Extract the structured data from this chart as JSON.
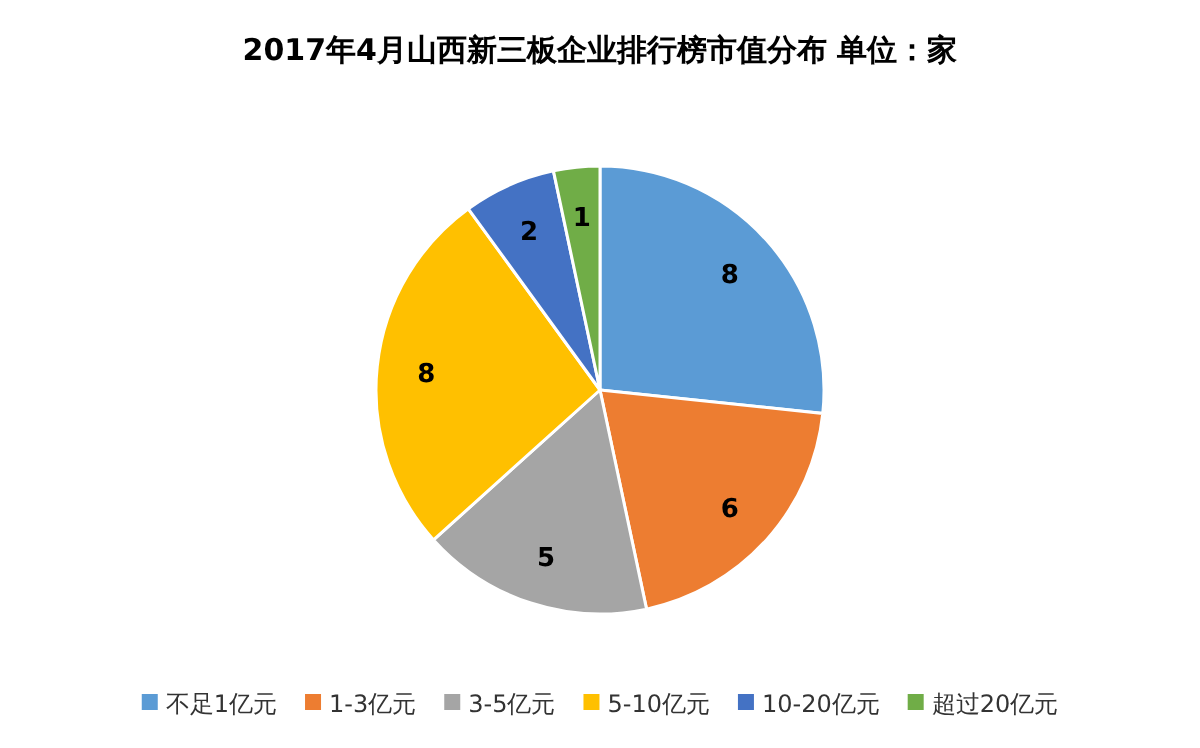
{
  "chart_data": {
    "type": "pie",
    "title": "2017年4月山西新三板企业排行榜市值分布  单位：家",
    "categories": [
      "不足1亿元",
      "1-3亿元",
      "3-5亿元",
      "5-10亿元",
      "10-20亿元",
      "超过20亿元"
    ],
    "values": [
      8,
      6,
      5,
      8,
      2,
      1
    ],
    "colors": [
      "#5b9bd5",
      "#ed7d31",
      "#a5a5a5",
      "#ffc000",
      "#4472c4",
      "#70ad47"
    ],
    "data_labels": true,
    "legend": "bottom"
  }
}
